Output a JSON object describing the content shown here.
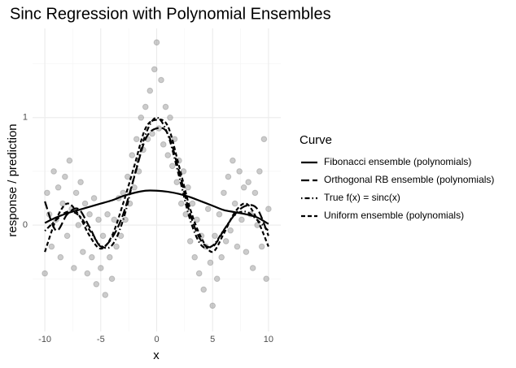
{
  "chart_data": {
    "type": "scatter_lines",
    "title": "Sinc Regression with Polynomial Ensembles",
    "x_label": "x",
    "y_label": "response / prediction",
    "xlim": [
      -11.1,
      11.1
    ],
    "ylim": [
      -0.99,
      1.83
    ],
    "xticks": [
      -10,
      -5,
      0,
      5,
      10
    ],
    "yticks": [
      0,
      1
    ],
    "x_minor_grid": [
      -7.5,
      -2.5,
      2.5,
      7.5
    ],
    "y_minor_grid": [
      -0.5,
      0.5,
      1.5
    ],
    "grid": true,
    "legend_title": "Curve",
    "legend_position": "right",
    "points": {
      "color": "#808080",
      "x": [
        -10,
        -9.8,
        -9.6,
        -9.4,
        -9.2,
        -9,
        -8.8,
        -8.6,
        -8.4,
        -8.2,
        -8,
        -7.8,
        -7.6,
        -7.4,
        -7.2,
        -7,
        -6.8,
        -6.6,
        -6.4,
        -6.2,
        -6,
        -5.8,
        -5.6,
        -5.4,
        -5.2,
        -5,
        -4.8,
        -4.6,
        -4.4,
        -4.2,
        -4,
        -3.8,
        -3.6,
        -3.4,
        -3.2,
        -3,
        -2.8,
        -2.6,
        -2.4,
        -2.2,
        -2,
        -1.8,
        -1.6,
        -1.4,
        -1.2,
        -1,
        -0.8,
        -0.6,
        -0.4,
        -0.2,
        0,
        0.2,
        0.4,
        0.6,
        0.8,
        1,
        1.2,
        1.4,
        1.6,
        1.8,
        2,
        2.2,
        2.4,
        2.6,
        2.8,
        3,
        3.2,
        3.4,
        3.6,
        3.8,
        4,
        4.2,
        4.4,
        4.6,
        4.8,
        5,
        5.2,
        5.4,
        5.6,
        5.8,
        6,
        6.2,
        6.4,
        6.6,
        6.8,
        7,
        7.2,
        7.4,
        7.6,
        7.8,
        8,
        8.2,
        8.4,
        8.6,
        8.8,
        9,
        9.2,
        9.4,
        9.6,
        9.8,
        10
      ],
      "y": [
        -0.45,
        0.3,
        0.1,
        -0.2,
        0.5,
        0.05,
        0.35,
        -0.3,
        0.2,
        0.45,
        -0.1,
        0.6,
        0.15,
        -0.4,
        0.3,
        0,
        0.4,
        -0.25,
        0.2,
        -0.45,
        0.1,
        -0.3,
        0.25,
        -0.55,
        0.05,
        -0.4,
        -0.1,
        -0.65,
        0.1,
        -0.3,
        -0.5,
        0.05,
        -0.2,
        0.25,
        -0.1,
        0.3,
        0.05,
        0.45,
        0.2,
        0.65,
        0.35,
        0.8,
        0.5,
        1,
        0.7,
        1.1,
        0.8,
        1.25,
        0.85,
        1.45,
        1.7,
        0.9,
        1.35,
        0.75,
        1.1,
        0.65,
        1,
        0.55,
        0.8,
        0.4,
        0.6,
        0.2,
        0.5,
        0.1,
        0.35,
        -0.15,
        0.2,
        -0.3,
        0.05,
        -0.45,
        -0.1,
        -0.6,
        -0.2,
        0.15,
        -0.35,
        -0.75,
        -0.1,
        -0.5,
        0.1,
        -0.3,
        0.3,
        -0.15,
        0.45,
        -0.05,
        0.6,
        0.2,
        -0.2,
        0.5,
        0.05,
        0.35,
        -0.25,
        0.4,
        0.1,
        -0.4,
        0.3,
        0,
        0.5,
        -0.2,
        0.8,
        -0.5,
        0.15
      ]
    },
    "x": [
      -10,
      -9,
      -8,
      -7,
      -6,
      -5,
      -4,
      -3,
      -2,
      -1,
      0,
      1,
      2,
      3,
      4,
      5,
      6,
      7,
      8,
      9,
      10
    ],
    "series": [
      {
        "name": "Fibonacci ensemble (polynomials)",
        "color": "#000000",
        "linetype": "solid",
        "values": [
          0.02,
          0.07,
          0.11,
          0.14,
          0.17,
          0.2,
          0.23,
          0.27,
          0.3,
          0.32,
          0.32,
          0.31,
          0.29,
          0.26,
          0.22,
          0.18,
          0.14,
          0.12,
          0.1,
          0.07,
          0.01
        ]
      },
      {
        "name": "Orthogonal RB ensemble (polynomials)",
        "color": "#000000",
        "linetype": "longdash",
        "values": [
          0.22,
          -0.05,
          0.1,
          0.15,
          -0.02,
          -0.2,
          -0.12,
          0.1,
          0.45,
          0.8,
          0.9,
          0.85,
          0.5,
          0.1,
          -0.15,
          -0.2,
          -0.05,
          0.1,
          0.18,
          0.15,
          -0.1
        ]
      },
      {
        "name": "True f(x) = sinc(x)",
        "color": "#000000",
        "linetype": "dotdash",
        "values": [
          -0.054,
          0.046,
          0.124,
          0.094,
          -0.047,
          -0.192,
          -0.189,
          0.047,
          0.455,
          0.841,
          1,
          0.841,
          0.455,
          0.047,
          -0.189,
          -0.192,
          -0.047,
          0.094,
          0.124,
          0.046,
          -0.054
        ]
      },
      {
        "name": "Uniform ensemble (polynomials)",
        "color": "#000000",
        "linetype": "dashed",
        "values": [
          -0.25,
          0.05,
          0.2,
          0.1,
          -0.1,
          -0.22,
          -0.1,
          0.2,
          0.55,
          0.9,
          0.98,
          0.92,
          0.55,
          0.15,
          -0.12,
          -0.25,
          -0.08,
          0.12,
          0.2,
          0.05,
          -0.2
        ]
      }
    ]
  }
}
